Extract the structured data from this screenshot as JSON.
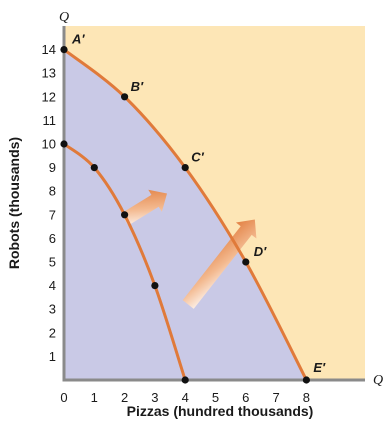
{
  "chart_data": {
    "type": "line",
    "xlabel": "Pizzas (hundred thousands)",
    "ylabel": "Robots (thousands)",
    "x_axis_end_label": "Q",
    "y_axis_end_label": "Q",
    "xlim": [
      0,
      10
    ],
    "ylim": [
      0,
      15
    ],
    "x_ticks": [
      0,
      1,
      2,
      3,
      4,
      5,
      6,
      7,
      8
    ],
    "y_ticks": [
      1,
      2,
      3,
      4,
      5,
      6,
      7,
      8,
      9,
      10,
      11,
      12,
      13,
      14
    ],
    "grid": false,
    "colors": {
      "curve": "#e07a3a",
      "plot_background": "#fde6b6",
      "shaded_region": "#c9c9e6",
      "axis": "#8a8a8a",
      "points": "#111111"
    },
    "series": [
      {
        "x": [
          0,
          1,
          2,
          3,
          4
        ],
        "y": [
          10,
          9,
          7,
          4,
          0
        ],
        "point_labels": [
          "",
          "",
          "",
          "",
          ""
        ]
      },
      {
        "x": [
          0,
          2,
          4,
          6,
          8
        ],
        "y": [
          14,
          12,
          9,
          5,
          0
        ],
        "point_labels": [
          "A′",
          "B′",
          "C′",
          "D′",
          "E′"
        ]
      }
    ],
    "annotations": [
      {
        "type": "arrow",
        "from": [
          2,
          6.8
        ],
        "to": [
          3.4,
          7.9
        ]
      },
      {
        "type": "arrow",
        "from": [
          4.1,
          3.2
        ],
        "to": [
          6.3,
          6.8
        ]
      }
    ]
  }
}
